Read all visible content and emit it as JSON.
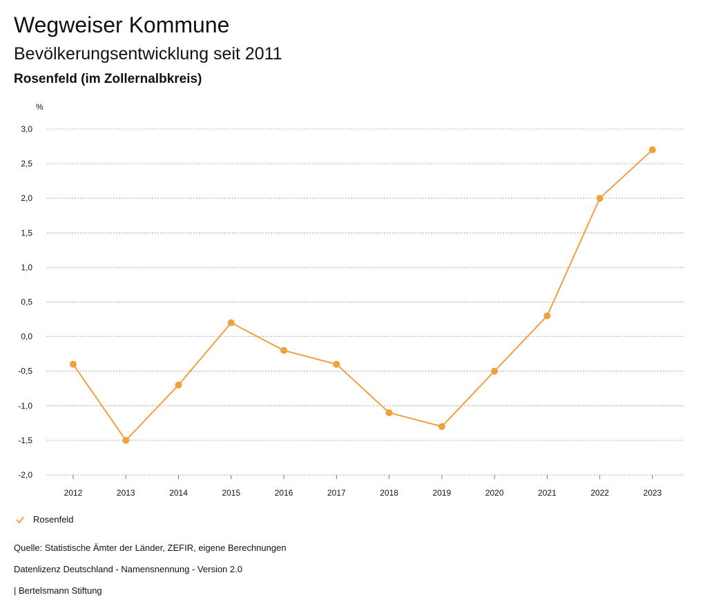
{
  "header": {
    "title": "Wegweiser Kommune",
    "subtitle": "Bevölkerungsentwicklung seit 2011",
    "region": "Rosenfeld (im Zollernalbkreis)"
  },
  "legend": {
    "label": "Rosenfeld"
  },
  "footer": {
    "source": "Quelle: Statistische Ämter der Länder, ZEFIR, eigene Berechnungen",
    "license": "Datenlizenz Deutschland - Namensnennung - Version 2.0",
    "publisher": "| Bertelsmann Stiftung"
  },
  "colors": {
    "series": "#f0a03c",
    "grid": "#999999"
  },
  "chart_data": {
    "type": "line",
    "title": "Bevölkerungsentwicklung seit 2011",
    "ylabel": "%",
    "xlabel": "",
    "categories": [
      "2012",
      "2013",
      "2014",
      "2015",
      "2016",
      "2017",
      "2018",
      "2019",
      "2020",
      "2021",
      "2022",
      "2023"
    ],
    "series": [
      {
        "name": "Rosenfeld",
        "values": [
          -0.4,
          -1.5,
          -0.7,
          0.2,
          -0.2,
          -0.4,
          -1.1,
          -1.3,
          -0.5,
          0.3,
          2.0,
          2.7
        ]
      }
    ],
    "ylim": [
      -2.0,
      3.0
    ],
    "yticks": [
      "3,0",
      "2,5",
      "2,0",
      "1,5",
      "1,0",
      "0,5",
      "0,0",
      "-0,5",
      "-1,0",
      "-1,5",
      "-2,0"
    ],
    "grid": true,
    "legend_position": "bottom-left"
  }
}
